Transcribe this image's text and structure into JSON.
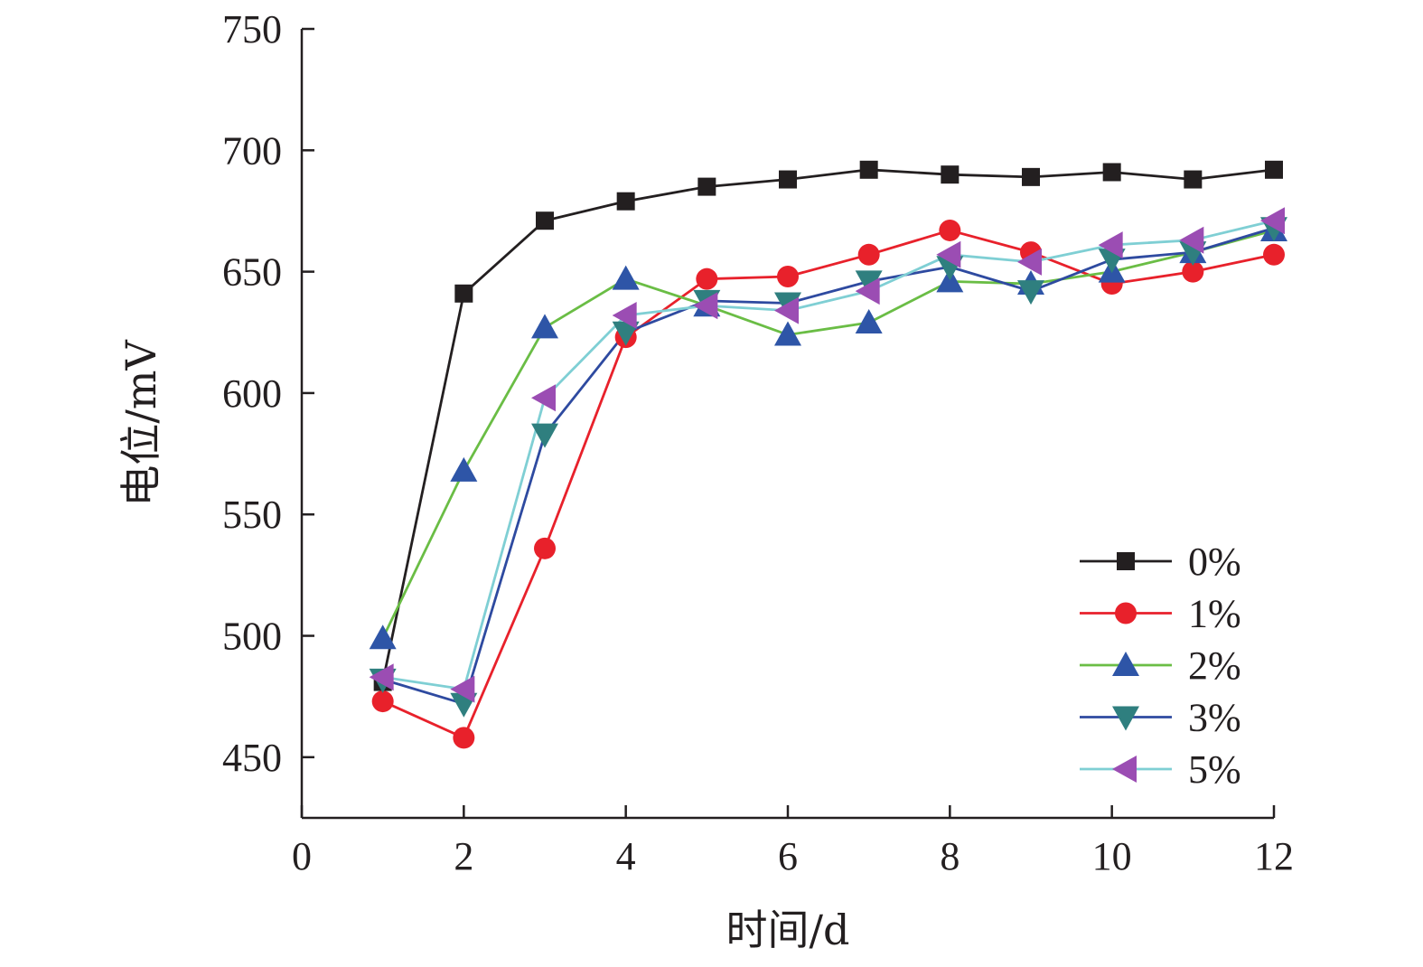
{
  "chart_data": {
    "type": "line",
    "xlabel": "时间/d",
    "ylabel": "电位/mV",
    "xlim": [
      0,
      12
    ],
    "ylim": [
      425,
      750
    ],
    "xticks": [
      0,
      2,
      4,
      6,
      8,
      10,
      12
    ],
    "yticks": [
      450,
      500,
      550,
      600,
      650,
      700,
      750
    ],
    "grid": false,
    "legend_position": "lower-right",
    "x": [
      1,
      2,
      3,
      4,
      5,
      6,
      7,
      8,
      9,
      10,
      11,
      12
    ],
    "series": [
      {
        "name": "0%",
        "color": "#231f20",
        "marker": "square",
        "values": [
          481,
          641,
          671,
          679,
          685,
          688,
          692,
          690,
          689,
          691,
          688,
          692
        ]
      },
      {
        "name": "1%",
        "color": "#e8212b",
        "marker": "circle",
        "values": [
          473,
          458,
          536,
          623,
          647,
          648,
          657,
          667,
          658,
          645,
          650,
          657
        ]
      },
      {
        "name": "2%",
        "color": "#6abd45",
        "marker": "triangle-up",
        "values": [
          499,
          568,
          627,
          647,
          636,
          624,
          629,
          646,
          645,
          650,
          658,
          667
        ]
      },
      {
        "name": "3%",
        "color": "#2e4aa0",
        "marker": "triangle-down",
        "values": [
          482,
          472,
          583,
          625,
          638,
          637,
          646,
          652,
          642,
          655,
          658,
          668
        ]
      },
      {
        "name": "5%",
        "color": "#7fcfd4",
        "marker": "triangle-left",
        "values": [
          483,
          478,
          598,
          632,
          636,
          634,
          642,
          657,
          654,
          661,
          663,
          671
        ]
      }
    ],
    "marker_colors": {
      "square": "#231f20",
      "circle": "#e8212b",
      "triangle-up": "#2e55a7",
      "triangle-down": "#2f7f7f",
      "triangle-left": "#9b4db3"
    }
  }
}
